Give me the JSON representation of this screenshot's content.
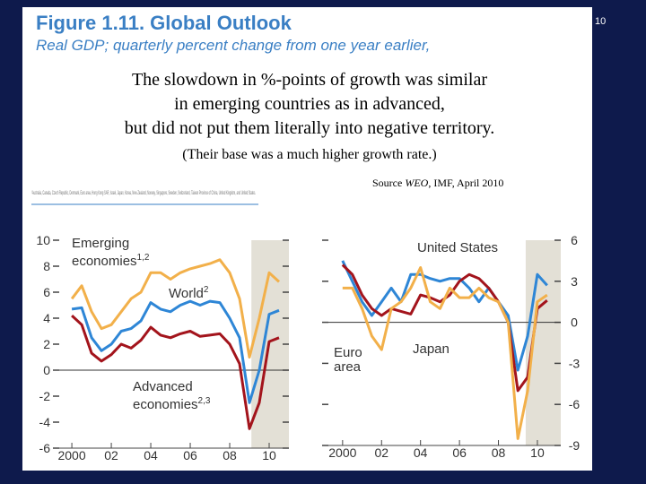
{
  "slide": {
    "page_number": "10",
    "figure_title": "Figure 1.11. Global Outlook",
    "figure_subtitle": "Real GDP; quarterly percent change from one year earlier,",
    "overlay_lines": [
      "The slowdown in %-points of growth was similar",
      "in emerging countries as in advanced,",
      "but did not put them literally into negative territory."
    ],
    "overlay_note": "(Their base was a much higher growth rate.)",
    "source": [
      "Source",
      "WEO",
      ", IMF, April 2010"
    ],
    "footnote": "¹Australia, Canada, Czech Republic, Denmark, Euro area, Hong Kong SAR, Israel, Japan, Korea, New Zealand, Norway, Singapore, Sweden, Switzerland, Taiwan Province of China, United Kingdom, and United States."
  },
  "chart_data": [
    {
      "type": "line",
      "xlim": [
        1999.36,
        2011.0
      ],
      "ylim": [
        -6,
        10
      ],
      "yticks": [
        -6,
        -4,
        -2,
        0,
        2,
        4,
        6,
        8,
        10
      ],
      "xticks": [
        2000,
        {
          "value": 2002,
          "label": "02"
        },
        {
          "value": 2004,
          "label": "04"
        },
        {
          "value": 2006,
          "label": "06"
        },
        {
          "value": 2008,
          "label": "08"
        },
        {
          "value": 2010,
          "label": "10"
        }
      ],
      "shaded_region": [
        2009.1,
        2011.0
      ],
      "x": [
        2000,
        2000.5,
        2001,
        2001.5,
        2002,
        2002.5,
        2003,
        2003.5,
        2004,
        2004.5,
        2005,
        2005.5,
        2006,
        2006.5,
        2007,
        2007.5,
        2008,
        2008.5,
        2009,
        2009.5,
        2010,
        2010.5
      ],
      "series": [
        {
          "name": "Emerging economies",
          "note": "1,2",
          "color": "#f2b04a",
          "values": [
            5.5,
            6.5,
            4.5,
            3.2,
            3.5,
            4.5,
            5.5,
            6.0,
            7.5,
            7.5,
            7.0,
            7.5,
            7.8,
            8.0,
            8.2,
            8.5,
            7.5,
            5.5,
            1.0,
            4.0,
            7.5,
            6.8
          ]
        },
        {
          "name": "World",
          "note": "2",
          "color": "#2e86d6",
          "values": [
            4.7,
            4.8,
            2.5,
            1.5,
            2.0,
            3.0,
            3.2,
            3.8,
            5.2,
            4.7,
            4.5,
            5.0,
            5.3,
            5.0,
            5.3,
            5.2,
            4.0,
            2.5,
            -2.5,
            0.0,
            4.3,
            4.6
          ]
        },
        {
          "name": "Advanced economies",
          "note": "2,3",
          "color": "#a3141c",
          "values": [
            4.2,
            3.5,
            1.3,
            0.7,
            1.2,
            2.0,
            1.7,
            2.3,
            3.3,
            2.7,
            2.5,
            2.8,
            3.0,
            2.6,
            2.7,
            2.8,
            2.0,
            0.5,
            -4.5,
            -2.5,
            2.2,
            2.5
          ]
        }
      ]
    },
    {
      "type": "line",
      "xlim": [
        1999.27,
        2011.2
      ],
      "ylim": [
        -9,
        6
      ],
      "yticks": [
        -9,
        -6,
        -3,
        0,
        3,
        6
      ],
      "xticks": [
        2000,
        {
          "value": 2002,
          "label": "02"
        },
        {
          "value": 2004,
          "label": "04"
        },
        {
          "value": 2006,
          "label": "06"
        },
        {
          "value": 2008,
          "label": "08"
        },
        {
          "value": 2010,
          "label": "10"
        }
      ],
      "shaded_region": [
        2009.4,
        2011.2
      ],
      "x": [
        2000,
        2000.5,
        2001,
        2001.5,
        2002,
        2002.5,
        2003,
        2003.5,
        2004,
        2004.5,
        2005,
        2005.5,
        2006,
        2006.5,
        2007,
        2007.5,
        2008,
        2008.5,
        2009,
        2009.5,
        2010,
        2010.5
      ],
      "series": [
        {
          "name": "United States",
          "color": "#2e86d6",
          "values": [
            4.5,
            3.0,
            1.5,
            0.5,
            1.5,
            2.5,
            1.5,
            3.5,
            3.5,
            3.2,
            3.0,
            3.2,
            3.2,
            2.5,
            1.5,
            2.5,
            1.5,
            0.5,
            -3.5,
            -1.0,
            3.5,
            2.7
          ]
        },
        {
          "name": "Euro area",
          "color": "#a3141c",
          "values": [
            4.2,
            3.5,
            2.0,
            1.0,
            0.5,
            1.0,
            0.8,
            0.6,
            2.0,
            1.8,
            1.5,
            2.0,
            3.0,
            3.5,
            3.2,
            2.5,
            1.5,
            0.0,
            -5.0,
            -4.0,
            1.0,
            1.6
          ]
        },
        {
          "name": "Japan",
          "color": "#f2b04a",
          "values": [
            2.5,
            2.5,
            1.0,
            -1.0,
            -2.0,
            1.0,
            1.5,
            2.5,
            4.0,
            1.5,
            1.0,
            2.5,
            1.8,
            1.8,
            2.5,
            1.8,
            1.5,
            0.0,
            -8.5,
            -5.0,
            1.5,
            2.0
          ]
        }
      ]
    }
  ]
}
